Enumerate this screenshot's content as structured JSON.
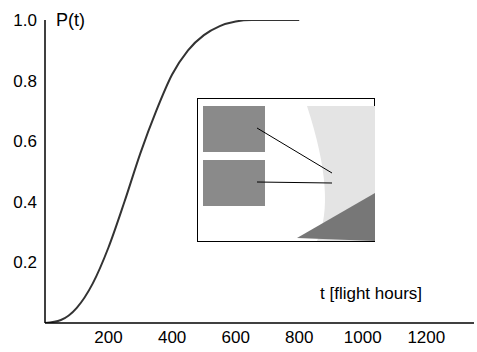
{
  "chart_data": {
    "type": "line",
    "x_label": "t [flight hours]",
    "y_label": "P(t)",
    "x": [
      0,
      50,
      100,
      150,
      200,
      250,
      300,
      350,
      400,
      450,
      500,
      550,
      600,
      650,
      700,
      800
    ],
    "values": [
      0,
      0.01,
      0.05,
      0.13,
      0.25,
      0.4,
      0.56,
      0.7,
      0.82,
      0.9,
      0.95,
      0.98,
      0.995,
      1,
      1,
      1
    ],
    "color": "#333333",
    "xlim": [
      0,
      1350
    ],
    "ylim": [
      0,
      1
    ],
    "xticks": [
      200,
      400,
      600,
      800,
      1000,
      1200
    ],
    "yticks": [
      0.2,
      0.4,
      0.6,
      0.8,
      {
        "value": 1,
        "label": "1.0"
      }
    ],
    "grid": false
  }
}
